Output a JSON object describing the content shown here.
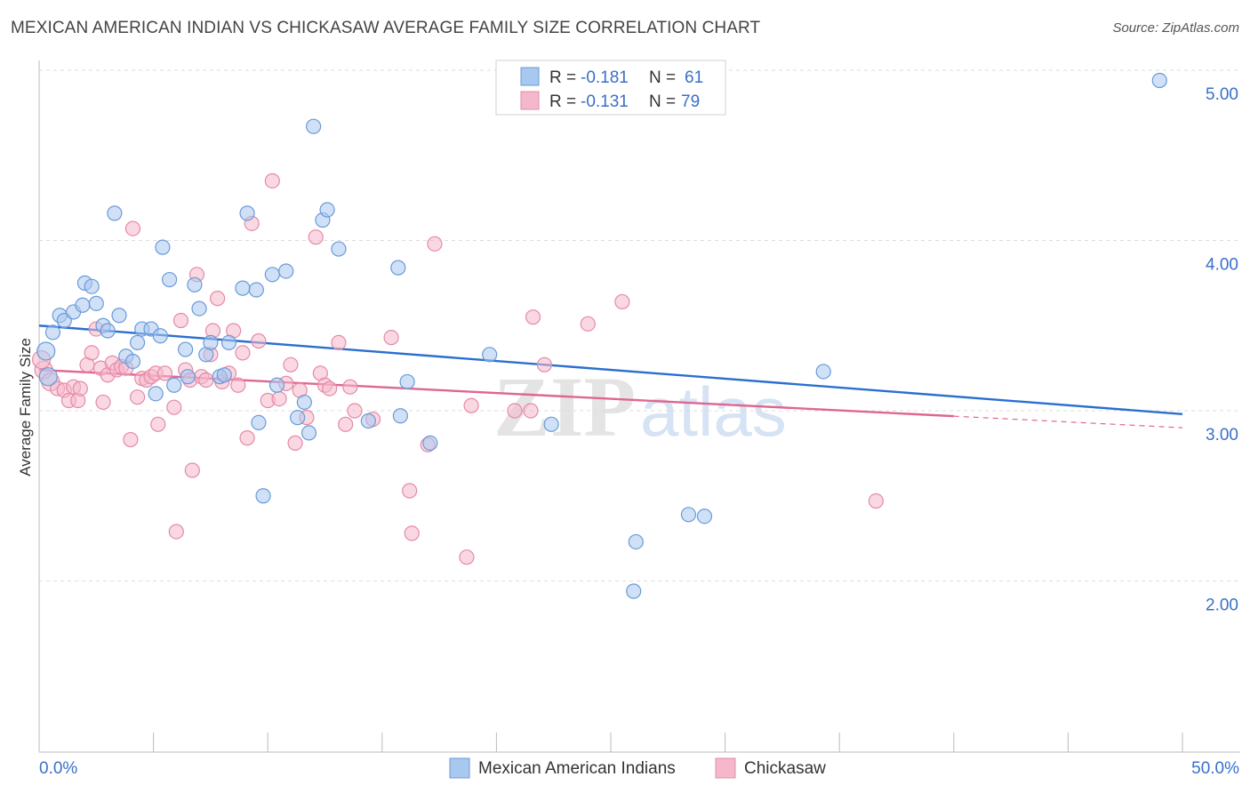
{
  "header": {
    "title": "MEXICAN AMERICAN INDIAN VS CHICKASAW AVERAGE FAMILY SIZE CORRELATION CHART",
    "source": "Source: ZipAtlas.com"
  },
  "legend": {
    "r_label": "R =",
    "n_label": "N =",
    "rows": [
      {
        "r": "-0.181",
        "n": "61"
      },
      {
        "r": "-0.131",
        "n": "79"
      }
    ]
  },
  "watermark": {
    "zip": "ZIP",
    "atlas": "atlas"
  },
  "colors": {
    "blue_fill": "#a9c8f0",
    "blue_stroke": "#6a9ad8",
    "blue_line": "#2b6fd0",
    "pink_fill": "#f5b8cb",
    "pink_stroke": "#e48aa8",
    "pink_line": "#e06690",
    "tick_label": "#3a6fc8",
    "grid": "#dddddd"
  },
  "chart_data": {
    "type": "scatter",
    "ylabel": "Average Family Size",
    "xlim": [
      0,
      50
    ],
    "ylim": [
      1.1,
      5.2
    ],
    "x_tick_labels": [
      "0.0%",
      "50.0%"
    ],
    "y_ticks": [
      2.0,
      3.0,
      4.0,
      5.0
    ],
    "y_tick_labels": [
      "2.00",
      "3.00",
      "4.00",
      "5.00"
    ],
    "grid": "horizontal dashed",
    "legend_placement": "top-center and bottom",
    "series": [
      {
        "name": "Mexican American Indians",
        "color": "blue",
        "trend": {
          "x0": 0,
          "y0": 3.5,
          "x1": 50,
          "y1": 2.98,
          "dashed_from": null
        },
        "points": [
          [
            0.3,
            3.35
          ],
          [
            0.4,
            3.2
          ],
          [
            0.6,
            3.46
          ],
          [
            0.9,
            3.56
          ],
          [
            1.1,
            3.53
          ],
          [
            1.5,
            3.58
          ],
          [
            1.9,
            3.62
          ],
          [
            2.0,
            3.75
          ],
          [
            2.3,
            3.73
          ],
          [
            2.5,
            3.63
          ],
          [
            2.8,
            3.5
          ],
          [
            3.0,
            3.47
          ],
          [
            3.3,
            4.16
          ],
          [
            3.5,
            3.56
          ],
          [
            3.8,
            3.32
          ],
          [
            4.1,
            3.29
          ],
          [
            4.3,
            3.4
          ],
          [
            4.5,
            3.48
          ],
          [
            4.9,
            3.48
          ],
          [
            5.1,
            3.1
          ],
          [
            5.3,
            3.44
          ],
          [
            5.4,
            3.96
          ],
          [
            5.7,
            3.77
          ],
          [
            5.9,
            3.15
          ],
          [
            6.4,
            3.36
          ],
          [
            6.5,
            3.2
          ],
          [
            6.8,
            3.74
          ],
          [
            7.0,
            3.6
          ],
          [
            7.3,
            3.33
          ],
          [
            7.5,
            3.4
          ],
          [
            7.9,
            3.2
          ],
          [
            8.1,
            3.21
          ],
          [
            8.3,
            3.4
          ],
          [
            8.9,
            3.72
          ],
          [
            9.1,
            4.16
          ],
          [
            9.5,
            3.71
          ],
          [
            9.6,
            2.93
          ],
          [
            9.8,
            2.5
          ],
          [
            10.2,
            3.8
          ],
          [
            10.4,
            3.15
          ],
          [
            10.8,
            3.82
          ],
          [
            11.3,
            2.96
          ],
          [
            11.6,
            3.05
          ],
          [
            11.8,
            2.87
          ],
          [
            12.0,
            4.67
          ],
          [
            12.4,
            4.12
          ],
          [
            12.6,
            4.18
          ],
          [
            13.1,
            3.95
          ],
          [
            14.4,
            2.94
          ],
          [
            15.7,
            3.84
          ],
          [
            15.8,
            2.97
          ],
          [
            16.1,
            3.17
          ],
          [
            17.1,
            2.81
          ],
          [
            19.7,
            3.33
          ],
          [
            22.4,
            2.92
          ],
          [
            26.1,
            2.23
          ],
          [
            26.0,
            1.94
          ],
          [
            28.4,
            2.39
          ],
          [
            29.1,
            2.38
          ],
          [
            34.3,
            3.23
          ],
          [
            49.0,
            4.94
          ]
        ]
      },
      {
        "name": "Chickasaw",
        "color": "pink",
        "trend": {
          "x0": 0,
          "y0": 3.24,
          "x1": 50,
          "y1": 2.9,
          "dashed_from": 40
        },
        "points": [
          [
            0.2,
            3.24
          ],
          [
            0.5,
            3.17
          ],
          [
            0.8,
            3.13
          ],
          [
            1.1,
            3.12
          ],
          [
            1.3,
            3.06
          ],
          [
            1.5,
            3.14
          ],
          [
            1.7,
            3.06
          ],
          [
            1.8,
            3.13
          ],
          [
            2.1,
            3.27
          ],
          [
            2.3,
            3.34
          ],
          [
            2.5,
            3.48
          ],
          [
            2.7,
            3.25
          ],
          [
            2.8,
            3.05
          ],
          [
            3.0,
            3.21
          ],
          [
            3.2,
            3.28
          ],
          [
            3.4,
            3.24
          ],
          [
            3.6,
            3.26
          ],
          [
            3.8,
            3.25
          ],
          [
            4.0,
            2.83
          ],
          [
            4.1,
            4.07
          ],
          [
            4.3,
            3.08
          ],
          [
            4.5,
            3.19
          ],
          [
            4.7,
            3.18
          ],
          [
            4.9,
            3.2
          ],
          [
            5.1,
            3.22
          ],
          [
            5.2,
            2.92
          ],
          [
            5.5,
            3.22
          ],
          [
            5.9,
            3.02
          ],
          [
            6.0,
            2.29
          ],
          [
            6.2,
            3.53
          ],
          [
            6.4,
            3.24
          ],
          [
            6.6,
            3.18
          ],
          [
            6.7,
            2.65
          ],
          [
            6.9,
            3.8
          ],
          [
            7.1,
            3.2
          ],
          [
            7.3,
            3.18
          ],
          [
            7.5,
            3.33
          ],
          [
            7.6,
            3.47
          ],
          [
            7.8,
            3.66
          ],
          [
            8.0,
            3.17
          ],
          [
            8.3,
            3.22
          ],
          [
            8.5,
            3.47
          ],
          [
            8.7,
            3.15
          ],
          [
            8.9,
            3.34
          ],
          [
            9.1,
            2.84
          ],
          [
            9.3,
            4.1
          ],
          [
            9.6,
            3.41
          ],
          [
            10.0,
            3.06
          ],
          [
            10.2,
            4.35
          ],
          [
            10.5,
            3.07
          ],
          [
            10.8,
            3.16
          ],
          [
            11.0,
            3.27
          ],
          [
            11.2,
            2.81
          ],
          [
            11.4,
            3.12
          ],
          [
            11.7,
            2.96
          ],
          [
            12.1,
            4.02
          ],
          [
            12.3,
            3.22
          ],
          [
            12.5,
            3.15
          ],
          [
            12.7,
            3.13
          ],
          [
            13.1,
            3.4
          ],
          [
            13.4,
            2.92
          ],
          [
            13.6,
            3.14
          ],
          [
            13.8,
            3.0
          ],
          [
            14.6,
            2.95
          ],
          [
            15.4,
            3.43
          ],
          [
            16.2,
            2.53
          ],
          [
            16.3,
            2.28
          ],
          [
            17.0,
            2.8
          ],
          [
            17.3,
            3.98
          ],
          [
            18.7,
            2.14
          ],
          [
            18.9,
            3.03
          ],
          [
            20.8,
            3.0
          ],
          [
            21.5,
            3.0
          ],
          [
            21.6,
            3.55
          ],
          [
            22.1,
            3.27
          ],
          [
            24.0,
            3.51
          ],
          [
            25.5,
            3.64
          ],
          [
            36.6,
            2.47
          ],
          [
            0.1,
            3.3
          ]
        ]
      }
    ]
  },
  "bottom_legend": [
    "Mexican American Indians",
    "Chickasaw"
  ]
}
